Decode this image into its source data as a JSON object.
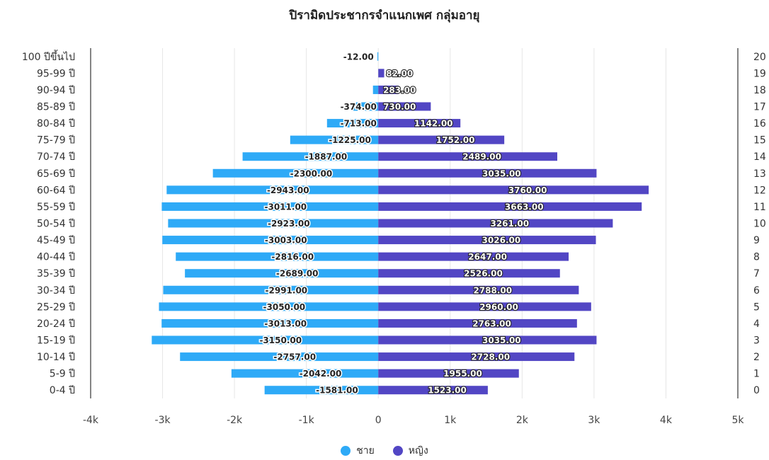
{
  "chart_data": {
    "type": "bar",
    "orientation": "horizontal",
    "stacked": true,
    "title": "ปิรามิดประชากรจำแนกเพศ กลุ่มอายุ",
    "categories": [
      "0-4 ปี",
      "5-9 ปี",
      "10-14 ปี",
      "15-19 ปี",
      "20-24 ปี",
      "25-29 ปี",
      "30-34 ปี",
      "35-39 ปี",
      "40-44 ปี",
      "45-49 ปี",
      "50-54 ปี",
      "55-59 ปี",
      "60-64 ปี",
      "65-69 ปี",
      "70-74 ปี",
      "75-79 ปี",
      "80-84 ปี",
      "85-89 ปี",
      "90-94 ปี",
      "95-99 ปี",
      "100 ปีขึ้นไป"
    ],
    "right_axis_labels": [
      "0",
      "1",
      "2",
      "3",
      "4",
      "5",
      "6",
      "7",
      "8",
      "9",
      "10",
      "11",
      "12",
      "13",
      "14",
      "15",
      "16",
      "17",
      "18",
      "19",
      "20"
    ],
    "series": [
      {
        "name": "ชาย",
        "color": "#2eaaf7",
        "values": [
          -1581,
          -2042,
          -2757,
          -3150,
          -3013,
          -3050,
          -2991,
          -2689,
          -2816,
          -3003,
          -2923,
          -3011,
          -2943,
          -2300,
          -1887,
          -1225,
          -713,
          -374,
          -74,
          0,
          -12
        ],
        "labels": [
          "-1581.00",
          "-2042.00",
          "-2757.00",
          "-3150.00",
          "-3013.00",
          "-3050.00",
          "-2991.00",
          "-2689.00",
          "-2816.00",
          "-3003.00",
          "-2923.00",
          "-3011.00",
          "-2943.00",
          "-2300.00",
          "-1887.00",
          "-1225.00",
          "-713.00",
          "-374.00",
          "",
          "",
          "-12.00"
        ]
      },
      {
        "name": "หญิง",
        "color": "#5246c4",
        "values": [
          1523,
          1955,
          2728,
          3035,
          2763,
          2960,
          2788,
          2526,
          2647,
          3026,
          3261,
          3663,
          3760,
          3035,
          2489,
          1752,
          1142,
          730,
          283,
          82,
          0
        ],
        "labels": [
          "1523.00",
          "1955.00",
          "2728.00",
          "3035.00",
          "2763.00",
          "2960.00",
          "2788.00",
          "2526.00",
          "2647.00",
          "3026.00",
          "3261.00",
          "3663.00",
          "3760.00",
          "3035.00",
          "2489.00",
          "1752.00",
          "1142.00",
          "730.00",
          "283.00",
          "82.00",
          ""
        ]
      }
    ],
    "xlim": [
      -4000,
      5000
    ],
    "xticks": [
      -4000,
      -3000,
      -2000,
      -1000,
      0,
      1000,
      2000,
      3000,
      4000,
      5000
    ],
    "xtick_labels": [
      "-4k",
      "-3k",
      "-2k",
      "-1k",
      "0",
      "1k",
      "2k",
      "3k",
      "4k",
      "5k"
    ],
    "grid": true,
    "legend_position": "bottom"
  }
}
